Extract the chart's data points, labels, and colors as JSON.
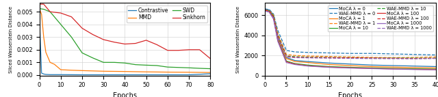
{
  "left": {
    "xlabel": "Epochs",
    "ylabel": "Sliced Wasserstein Distance",
    "xlim": [
      0,
      80
    ],
    "ylim": [
      -5e-05,
      0.0057
    ],
    "yticks": [
      0.0,
      0.001,
      0.002,
      0.003,
      0.004,
      0.005
    ],
    "xticks": [
      0,
      10,
      20,
      30,
      40,
      50,
      60,
      70,
      80
    ],
    "series": [
      {
        "name": "Contrastive",
        "color": "#1f77b4",
        "x": [
          0,
          1,
          2,
          3,
          5,
          10,
          20,
          30,
          40,
          50,
          60,
          70,
          80
        ],
        "y": [
          0.00455,
          0.00015,
          8e-05,
          5e-05,
          3e-05,
          3e-05,
          2e-05,
          2e-05,
          2e-05,
          2e-05,
          2e-05,
          2e-05,
          0.0001
        ]
      },
      {
        "name": "MMD",
        "color": "#ff7f0e",
        "x": [
          0,
          1,
          2,
          3,
          5,
          7,
          10,
          15,
          20,
          30,
          40,
          50,
          60,
          70,
          80
        ],
        "y": [
          0.00525,
          0.0048,
          0.003,
          0.0018,
          0.001,
          0.00085,
          0.00042,
          0.00038,
          0.00035,
          0.0003,
          0.00028,
          0.00025,
          0.00023,
          0.00022,
          0.0002
        ]
      },
      {
        "name": "SWD",
        "color": "#2ca02c",
        "x": [
          0,
          2,
          5,
          10,
          15,
          20,
          25,
          30,
          35,
          40,
          45,
          50,
          55,
          60,
          65,
          70,
          75,
          80
        ],
        "y": [
          0.00525,
          0.0052,
          0.005,
          0.004,
          0.003,
          0.00175,
          0.00135,
          0.001,
          0.001,
          0.00095,
          0.00082,
          0.00078,
          0.00075,
          0.00063,
          0.0006,
          0.00057,
          0.00053,
          0.0005
        ]
      },
      {
        "name": "Sinkhorn",
        "color": "#d62728",
        "x": [
          0,
          2,
          5,
          10,
          15,
          20,
          25,
          30,
          35,
          40,
          45,
          50,
          55,
          60,
          65,
          70,
          75,
          80
        ],
        "y": [
          0.0056,
          0.0056,
          0.005,
          0.0049,
          0.0046,
          0.0037,
          0.0032,
          0.0028,
          0.0026,
          0.00245,
          0.0025,
          0.00275,
          0.0024,
          0.00195,
          0.00195,
          0.002,
          0.002,
          0.0013
        ]
      }
    ]
  },
  "right": {
    "xlabel": "Epochs",
    "ylabel": "Sliced Wasserstein Distance",
    "xlim": [
      0,
      40
    ],
    "ylim": [
      0,
      7200
    ],
    "yticks": [
      0,
      2000,
      4000,
      6000
    ],
    "xticks": [
      0,
      5,
      10,
      15,
      20,
      25,
      30,
      35,
      40
    ],
    "moca_series": [
      {
        "name": "MoCA λ = 0",
        "color": "#1f77b4",
        "x": [
          0,
          1,
          2,
          3,
          5,
          7,
          10,
          15,
          20,
          25,
          30,
          35,
          40
        ],
        "y": [
          6600,
          6500,
          6000,
          4000,
          1800,
          1500,
          1400,
          1250,
          1150,
          1050,
          1000,
          950,
          900
        ]
      },
      {
        "name": "MoCA λ = 1",
        "color": "#ff7f0e",
        "x": [
          0,
          1,
          2,
          3,
          5,
          7,
          10,
          15,
          20,
          25,
          30,
          35,
          40
        ],
        "y": [
          6500,
          6400,
          5900,
          3800,
          1700,
          1400,
          1300,
          1100,
          1000,
          900,
          850,
          800,
          760
        ]
      },
      {
        "name": "MoCA λ = 10",
        "color": "#2ca02c",
        "x": [
          0,
          1,
          2,
          3,
          5,
          7,
          10,
          15,
          20,
          25,
          30,
          35,
          40
        ],
        "y": [
          6500,
          6400,
          5800,
          3600,
          1450,
          1200,
          1050,
          900,
          830,
          770,
          720,
          680,
          650
        ]
      },
      {
        "name": "MoCA λ = 100",
        "color": "#d62728",
        "x": [
          0,
          1,
          2,
          3,
          5,
          7,
          10,
          15,
          20,
          25,
          30,
          35,
          40
        ],
        "y": [
          6500,
          6300,
          5700,
          3500,
          1380,
          1150,
          980,
          850,
          780,
          720,
          670,
          630,
          600
        ]
      },
      {
        "name": "MoCA λ = 1000",
        "color": "#9467bd",
        "x": [
          0,
          1,
          2,
          3,
          5,
          7,
          10,
          15,
          20,
          25,
          30,
          35,
          40
        ],
        "y": [
          6400,
          6300,
          5600,
          3400,
          1300,
          1100,
          950,
          820,
          750,
          700,
          650,
          610,
          580
        ]
      }
    ],
    "waemmd_series": [
      {
        "name": "WAE-MMD λ = 0",
        "color": "#1f77b4",
        "x": [
          0,
          1,
          2,
          3,
          5,
          7,
          10,
          15,
          20,
          25,
          30,
          35,
          40
        ],
        "y": [
          6600,
          6550,
          6100,
          4500,
          2500,
          2350,
          2300,
          2250,
          2200,
          2200,
          2150,
          2100,
          2050
        ]
      },
      {
        "name": "WAE-MMD λ = 1",
        "color": "#ff7f0e",
        "x": [
          0,
          1,
          2,
          3,
          5,
          7,
          10,
          15,
          20,
          25,
          30,
          35,
          40
        ],
        "y": [
          6500,
          6450,
          6000,
          4200,
          2100,
          2000,
          1950,
          1900,
          1850,
          1800,
          1780,
          1800,
          1850
        ]
      },
      {
        "name": "WAE-MMD λ = 10",
        "color": "#2ca02c",
        "x": [
          0,
          1,
          2,
          3,
          5,
          7,
          10,
          15,
          20,
          25,
          30,
          35,
          40
        ],
        "y": [
          6500,
          6400,
          5900,
          4000,
          1950,
          1880,
          1840,
          1800,
          1780,
          1760,
          1750,
          1740,
          1730
        ]
      },
      {
        "name": "WAE-MMD λ = 100",
        "color": "#d62728",
        "x": [
          0,
          1,
          2,
          3,
          5,
          7,
          10,
          15,
          20,
          25,
          30,
          35,
          40
        ],
        "y": [
          6500,
          6400,
          5800,
          3900,
          1900,
          1820,
          1800,
          1780,
          1760,
          1750,
          1720,
          1700,
          1720
        ]
      },
      {
        "name": "WAE-MMD λ = 1000",
        "color": "#9467bd",
        "x": [
          0,
          1,
          2,
          3,
          5,
          7,
          10,
          15,
          20,
          25,
          30,
          35,
          40
        ],
        "y": [
          6400,
          6300,
          5700,
          3800,
          1850,
          1780,
          1760,
          1730,
          1710,
          1690,
          1680,
          1670,
          1700
        ]
      }
    ]
  }
}
